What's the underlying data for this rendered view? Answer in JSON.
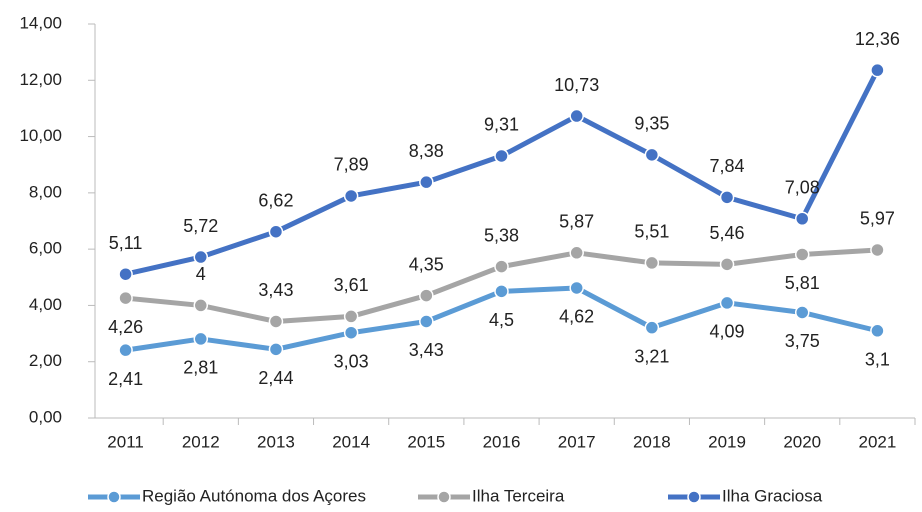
{
  "chart_data": {
    "type": "line",
    "categories": [
      "2011",
      "2012",
      "2013",
      "2014",
      "2015",
      "2016",
      "2017",
      "2018",
      "2019",
      "2020",
      "2021"
    ],
    "series": [
      {
        "name": "Região Autónoma dos Açores",
        "color": "#5b9bd5",
        "values": [
          2.41,
          2.81,
          2.44,
          3.03,
          3.43,
          4.5,
          4.62,
          3.21,
          4.09,
          3.75,
          3.1
        ],
        "value_labels": [
          "2,41",
          "2,81",
          "2,44",
          "3,03",
          "3,43",
          "4,5",
          "4,62",
          "3,21",
          "4,09",
          "3,75",
          "3,1"
        ]
      },
      {
        "name": "Ilha Terceira",
        "color": "#a5a5a5",
        "values": [
          4.26,
          4,
          3.43,
          3.61,
          4.35,
          5.38,
          5.87,
          5.51,
          5.46,
          5.81,
          5.97
        ],
        "value_labels": [
          "4,26",
          "4",
          "3,43",
          "3,61",
          "4,35",
          "5,38",
          "5,87",
          "5,51",
          "5,46",
          "5,81",
          "5,97"
        ]
      },
      {
        "name": "Ilha Graciosa",
        "color": "#4472c4",
        "values": [
          5.11,
          5.72,
          6.62,
          7.89,
          8.38,
          9.31,
          10.73,
          9.35,
          7.84,
          7.08,
          12.36
        ],
        "value_labels": [
          "5,11",
          "5,72",
          "6,62",
          "7,89",
          "8,38",
          "9,31",
          "10,73",
          "9,35",
          "7,84",
          "7,08",
          "12,36"
        ]
      }
    ],
    "ylim": [
      0,
      14
    ],
    "yticks": [
      {
        "value": 0,
        "label": "0,00"
      },
      {
        "value": 2,
        "label": "2,00"
      },
      {
        "value": 4,
        "label": "4,00"
      },
      {
        "value": 6,
        "label": "6,00"
      },
      {
        "value": 8,
        "label": "8,00"
      },
      {
        "value": 10,
        "label": "10,00"
      },
      {
        "value": 12,
        "label": "12,00"
      },
      {
        "value": 14,
        "label": "14,00"
      }
    ],
    "legend": "bottom"
  }
}
